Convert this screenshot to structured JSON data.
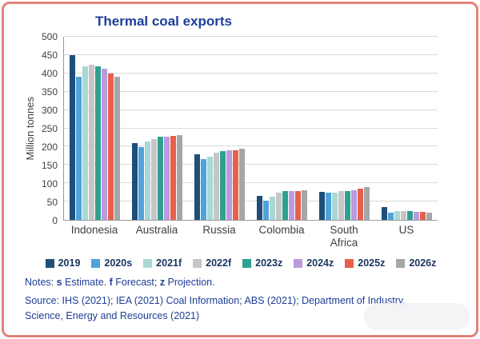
{
  "colors": {
    "frame_border": "#e2837a",
    "title": "#1d3e9a",
    "notes_text": "#1e3e97",
    "legend_text": "#17355e",
    "gridline": "#d9d9d9",
    "axis_line": "#9a9a9a"
  },
  "chart_data": {
    "type": "bar",
    "title": "Thermal coal exports",
    "xlabel": "",
    "ylabel": "Million tonnes",
    "ylim": [
      0,
      500
    ],
    "yticks": [
      0,
      50,
      100,
      150,
      200,
      250,
      300,
      350,
      400,
      450,
      500
    ],
    "grid": true,
    "legend_position": "bottom",
    "categories": [
      "Indonesia",
      "Australia",
      "Russia",
      "Colombia",
      "South Africa",
      "US"
    ],
    "categories_display": [
      "Indonesia",
      "Australia",
      "Russia",
      "Colombia",
      "South\nAfrica",
      "US"
    ],
    "series": [
      {
        "name": "2019",
        "color": "#1F4E79",
        "values": [
          450,
          210,
          178,
          65,
          76,
          35
        ]
      },
      {
        "name": "2020s",
        "color": "#4FA3DA",
        "values": [
          390,
          198,
          167,
          53,
          74,
          19
        ]
      },
      {
        "name": "2021f",
        "color": "#A9D8D6",
        "values": [
          420,
          213,
          173,
          63,
          75,
          25
        ]
      },
      {
        "name": "2022f",
        "color": "#C6C6C6",
        "values": [
          424,
          221,
          183,
          74,
          78,
          24
        ]
      },
      {
        "name": "2023z",
        "color": "#2FA08F",
        "values": [
          419,
          228,
          188,
          78,
          79,
          23
        ]
      },
      {
        "name": "2024z",
        "color": "#BB9BE0",
        "values": [
          413,
          228,
          189,
          79,
          81,
          22
        ]
      },
      {
        "name": "2025z",
        "color": "#E8604C",
        "values": [
          400,
          229,
          190,
          79,
          85,
          21
        ]
      },
      {
        "name": "2026z",
        "color": "#A6A6A6",
        "values": [
          390,
          231,
          194,
          81,
          89,
          19
        ]
      }
    ]
  },
  "notes": {
    "prefix": "Notes: ",
    "segments": [
      {
        "key": "s",
        "text": " Estimate.  "
      },
      {
        "key": "f",
        "text": " Forecast; "
      },
      {
        "key": "z",
        "text": " Projection."
      }
    ]
  },
  "source": {
    "label": "Source: IHS (2021); IEA (2021) Coal Information; ABS (2021); Department of Industry, Science, Energy and Resources (2021)"
  }
}
